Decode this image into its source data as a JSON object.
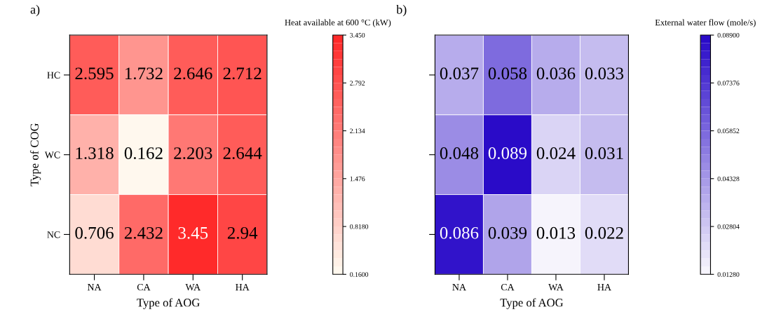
{
  "chart_data": [
    {
      "type": "heatmap",
      "title": "a)",
      "xlabel": "Type of AOG",
      "ylabel": "Type of COG",
      "clabel": "Heat available at 600 °C (kW)",
      "categories": [
        "NA",
        "CA",
        "WA",
        "HA"
      ],
      "y_categories": [
        "HC",
        "WC",
        "NC"
      ],
      "cells": [
        [
          2.595,
          1.732,
          2.646,
          2.712
        ],
        [
          1.318,
          0.162,
          2.203,
          2.644
        ],
        [
          0.706,
          2.432,
          3.45,
          2.94
        ]
      ],
      "clim": [
        0.16,
        3.45
      ],
      "cticks": [
        {
          "value": 0.16,
          "label": "0.1600"
        },
        {
          "value": 0.818,
          "label": "0.8180"
        },
        1.476,
        2.134,
        2.792,
        {
          "value": 3.45,
          "label": "3.450"
        }
      ],
      "data_labels": true
    },
    {
      "type": "heatmap",
      "title": "b)",
      "xlabel": "Type of AOG",
      "clabel": "External water flow (mole/s)",
      "categories": [
        "NA",
        "CA",
        "WA",
        "HA"
      ],
      "y_categories": [
        null,
        null,
        null
      ],
      "tick_labels": "x",
      "cells": [
        [
          0.037,
          0.058,
          0.036,
          0.033
        ],
        [
          0.048,
          0.089,
          0.024,
          0.031
        ],
        [
          0.086,
          0.039,
          0.013,
          0.022
        ]
      ],
      "clim": [
        0.0128,
        0.089
      ],
      "cticks": [
        {
          "value": 0.0128,
          "label": "0.01280"
        },
        0.02804,
        0.04328,
        0.05852,
        0.07376,
        {
          "value": 0.089,
          "label": "0.08900"
        }
      ],
      "data_labels": true
    }
  ]
}
